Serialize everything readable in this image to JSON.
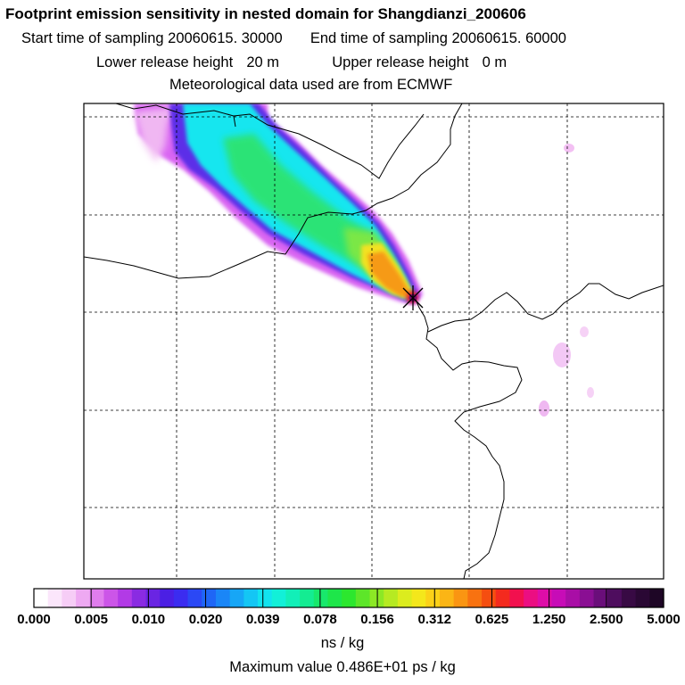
{
  "header": {
    "title": "Footprint emission sensitivity in nested domain for Shangdianzi_200606",
    "start_label": "Start time of sampling",
    "start_value": "20060615. 30000",
    "end_label": "End time of sampling",
    "end_value": "20060615. 60000",
    "lower_label": "Lower release height",
    "lower_value": "20 m",
    "upper_label": "Upper release height",
    "upper_value": "0 m",
    "met_text": "Meteorological data used are from ECMWF"
  },
  "chart_data": {
    "type": "heatmap",
    "title": "Footprint emission sensitivity in nested domain for Shangdianzi_200606",
    "colorbar": {
      "ticks": [
        "0.000",
        "0.005",
        "0.010",
        "0.020",
        "0.039",
        "0.078",
        "0.156",
        "0.312",
        "0.625",
        "1.250",
        "2.500",
        "5.000"
      ],
      "colors": [
        "#ffffff",
        "#fbe6fb",
        "#f6cdf6",
        "#eea9f2",
        "#e07ded",
        "#cc55e8",
        "#b23ae6",
        "#8a2be2",
        "#6a25e3",
        "#4b1fe4",
        "#3b2cf0",
        "#2b48f5",
        "#1f66f6",
        "#1a86f7",
        "#17a6f6",
        "#14c6f4",
        "#12e3ef",
        "#12f0d8",
        "#12efb8",
        "#14ec92",
        "#18e86c",
        "#1ee64a",
        "#2ce72e",
        "#5de629",
        "#8ce825",
        "#b6ea22",
        "#dcec1e",
        "#f4e71b",
        "#fbd118",
        "#fbb515",
        "#fa9512",
        "#f87210",
        "#f54e10",
        "#f42a1e",
        "#f2104e",
        "#eb0e82",
        "#de0da8",
        "#c70cb7",
        "#a90ea6",
        "#8a0f93",
        "#6a0e7a",
        "#4e0d5e",
        "#380a44",
        "#2a0834",
        "#1e0626"
      ]
    },
    "units": "ns / kg",
    "max_value_text": "Maximum value 0.486E+01 ps / kg",
    "max_value": 4.86,
    "release_site": "Shangdianzi",
    "grid": true
  }
}
